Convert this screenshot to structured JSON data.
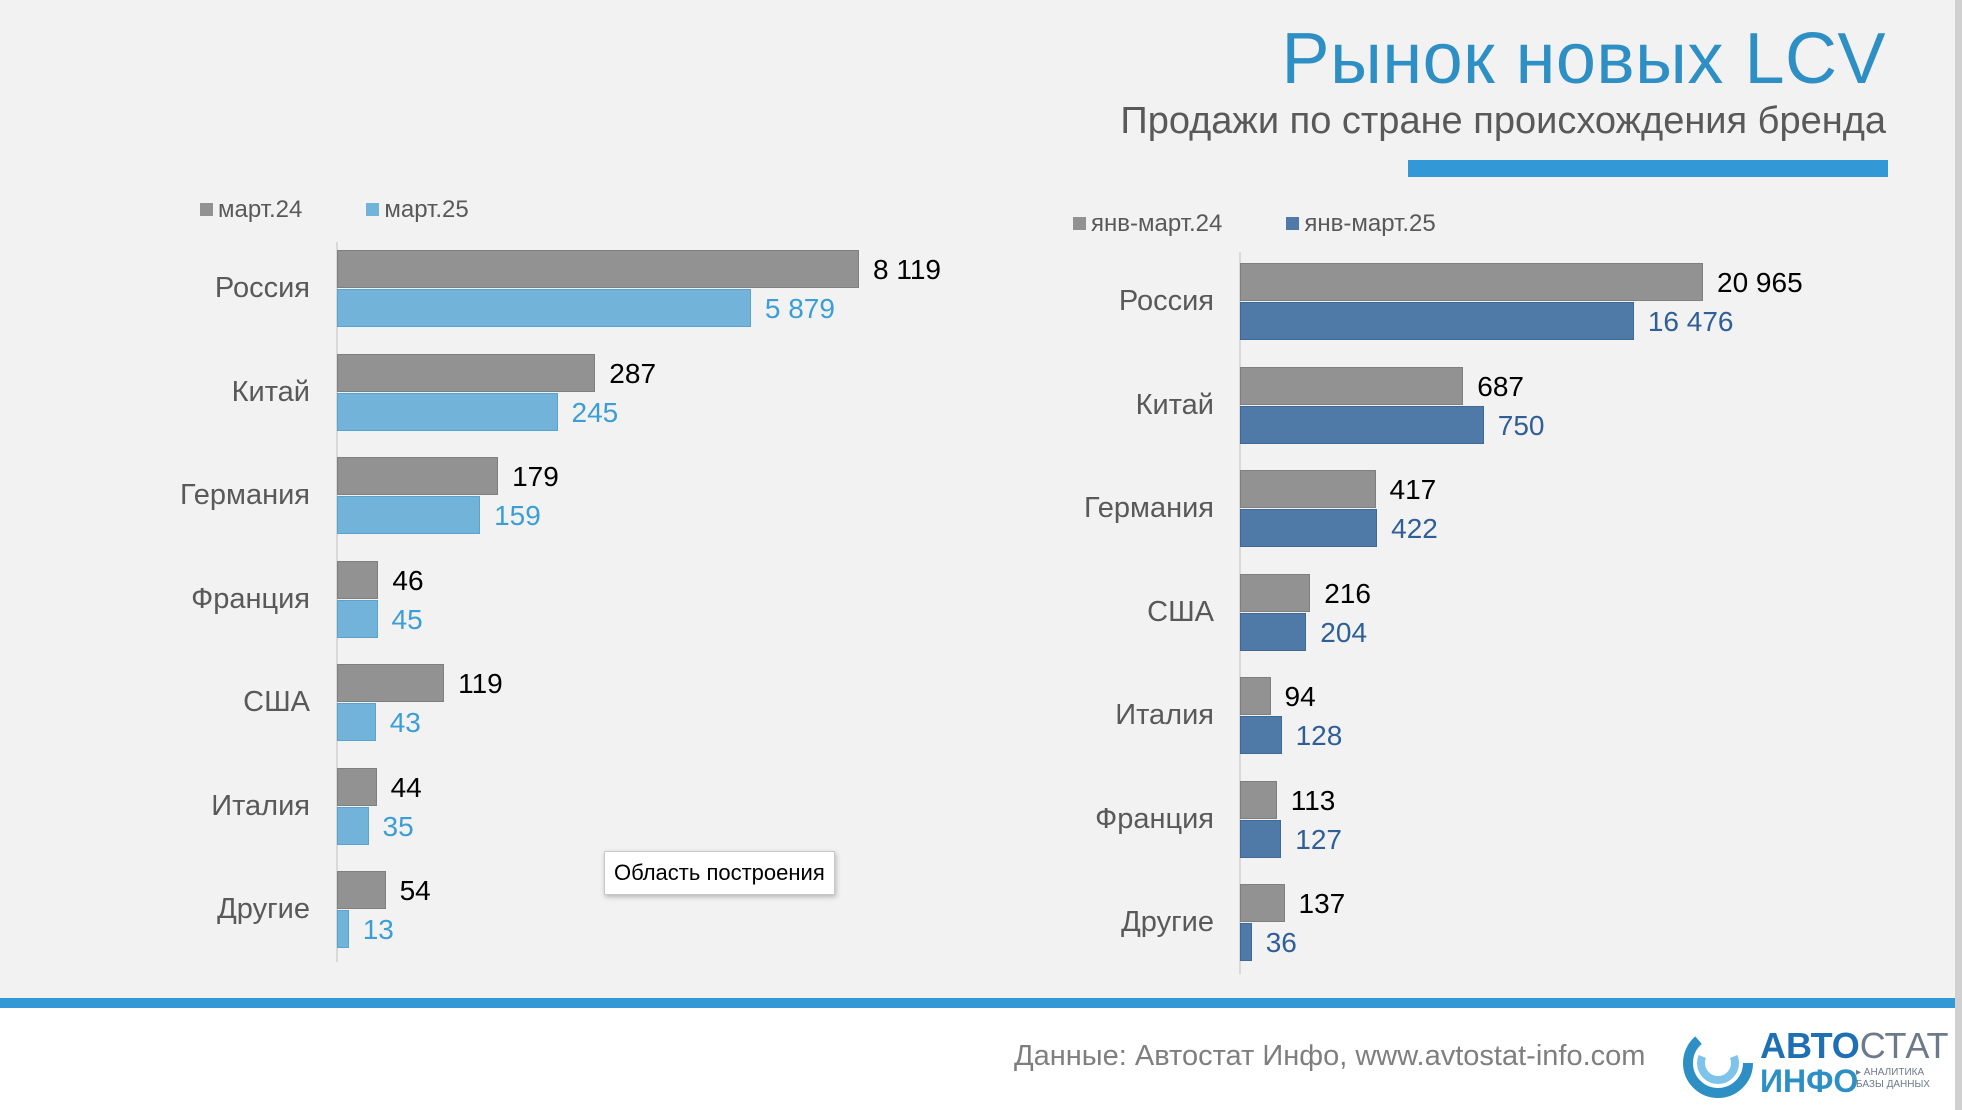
{
  "header": {
    "title": "Рынок новых LCV",
    "subtitle": "Продажи по стране происхождения бренда"
  },
  "colors": {
    "gray": "#929292",
    "light_blue": "#72b3da",
    "dark_blue": "#4f7aa8",
    "light_blue_label": "#3c9ed6",
    "dark_blue_label": "#2f5f96",
    "accent": "#3399d6"
  },
  "chart_data": [
    {
      "type": "bar",
      "orientation": "horizontal",
      "categories": [
        "Россия",
        "Китай",
        "Германия",
        "Франция",
        "США",
        "Италия",
        "Другие"
      ],
      "series": [
        {
          "name": "март.24",
          "values": [
            8119,
            287,
            179,
            46,
            119,
            44,
            54
          ],
          "labels": [
            "8 119",
            "287",
            "179",
            "46",
            "119",
            "44",
            "54"
          ]
        },
        {
          "name": "март.25",
          "values": [
            5879,
            245,
            159,
            45,
            43,
            35,
            13
          ],
          "labels": [
            "5 879",
            "245",
            "159",
            "45",
            "43",
            "35",
            "13"
          ]
        }
      ],
      "legend_position": "top-left",
      "axis": "broken-scale"
    },
    {
      "type": "bar",
      "orientation": "horizontal",
      "categories": [
        "Россия",
        "Китай",
        "Германия",
        "США",
        "Италия",
        "Франция",
        "Другие"
      ],
      "series": [
        {
          "name": "янв-март.24",
          "values": [
            20965,
            687,
            417,
            216,
            94,
            113,
            137
          ],
          "labels": [
            "20 965",
            "687",
            "417",
            "216",
            "94",
            "113",
            "137"
          ]
        },
        {
          "name": "янв-март.25",
          "values": [
            16476,
            750,
            422,
            204,
            128,
            127,
            36
          ],
          "labels": [
            "16 476",
            "750",
            "422",
            "204",
            "128",
            "127",
            "36"
          ]
        }
      ],
      "legend_position": "top-left",
      "axis": "broken-scale"
    }
  ],
  "tooltip": {
    "text": "Область построения"
  },
  "footer": {
    "source": "Данные: Автостат Инфо, www.avtostat-info.com",
    "logo_main_a": "АВТО",
    "logo_main_b": "СТАТ",
    "logo_sub": "ИНФО",
    "logo_tagline": "▸ АНАЛИТИКА БАЗЫ ДАННЫХ"
  }
}
